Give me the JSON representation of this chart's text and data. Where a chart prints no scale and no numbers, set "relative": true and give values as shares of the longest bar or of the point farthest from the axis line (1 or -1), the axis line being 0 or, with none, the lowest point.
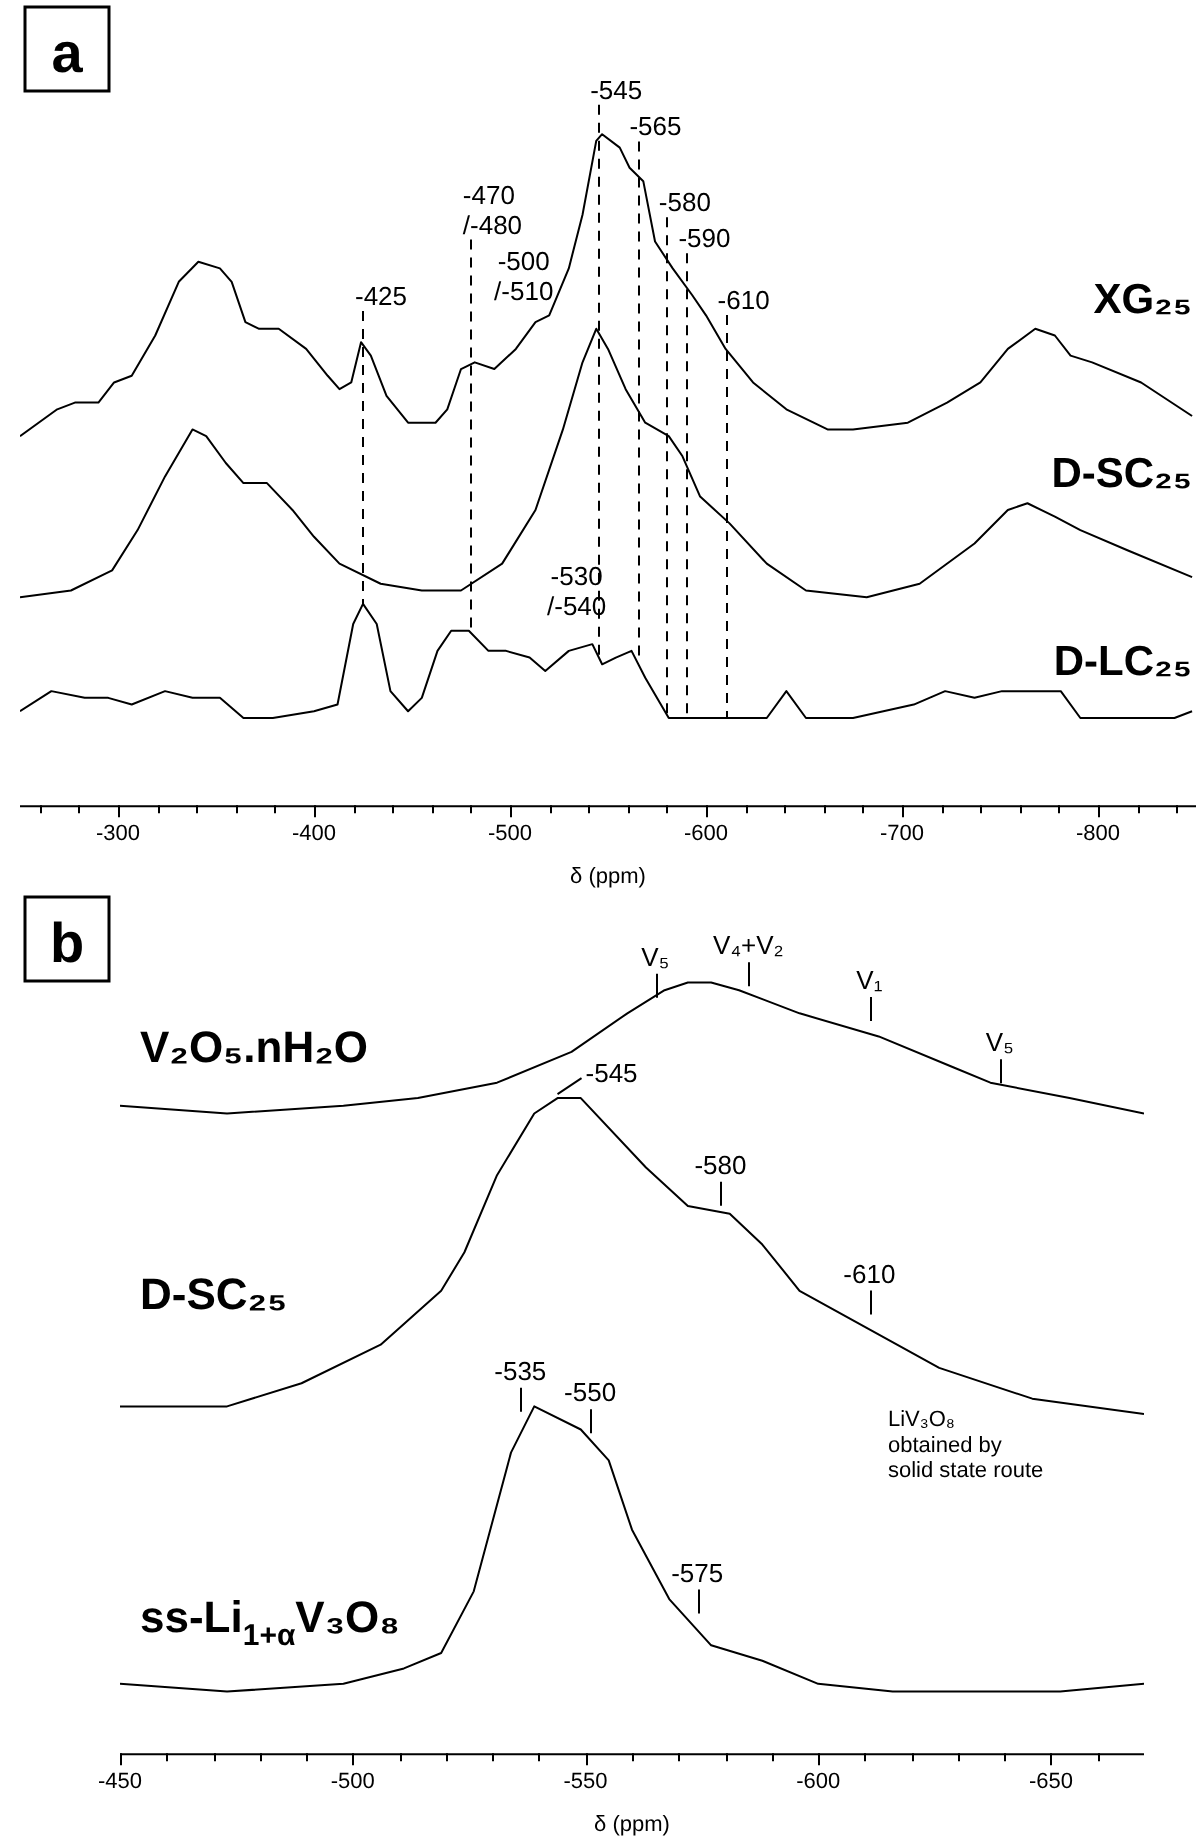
{
  "chart_data": [
    {
      "type": "line",
      "title": "a",
      "xlabel": "δ (ppm)",
      "relative": true,
      "marker": "none",
      "xlim": [
        -250,
        -850
      ],
      "xticks": [
        {
          "value": -260,
          "label": null
        },
        {
          "value": -280,
          "label": null
        },
        -300,
        {
          "value": -320,
          "label": null
        },
        {
          "value": -340,
          "label": null
        },
        {
          "value": -360,
          "label": null
        },
        {
          "value": -380,
          "label": null
        },
        -400,
        {
          "value": -420,
          "label": null
        },
        {
          "value": -440,
          "label": null
        },
        {
          "value": -460,
          "label": null
        },
        {
          "value": -480,
          "label": null
        },
        -500,
        {
          "value": -520,
          "label": null
        },
        {
          "value": -540,
          "label": null
        },
        {
          "value": -560,
          "label": null
        },
        {
          "value": -580,
          "label": null
        },
        -600,
        {
          "value": -620,
          "label": null
        },
        {
          "value": -640,
          "label": null
        },
        {
          "value": -660,
          "label": null
        },
        {
          "value": -680,
          "label": null
        },
        -700,
        {
          "value": -720,
          "label": null
        },
        {
          "value": -740,
          "label": null
        },
        {
          "value": -760,
          "label": null
        },
        {
          "value": -780,
          "label": null
        },
        -800,
        {
          "value": -820,
          "label": null
        },
        {
          "value": -840,
          "label": null
        }
      ],
      "series": [
        {
          "name": "XG₂₅",
          "color": "#000000",
          "x": [
            -250,
            -269,
            -278,
            -290,
            -298,
            -307,
            -319,
            -331,
            -341,
            -352,
            -358,
            -365,
            -372,
            -382,
            -396,
            -407,
            -413,
            -419,
            -424,
            -429,
            -437,
            -448,
            -462,
            -468,
            -475,
            -482,
            -492,
            -503,
            -513,
            -520,
            -530,
            -537,
            -544,
            -547,
            -556,
            -561,
            -568,
            -574,
            -583,
            -593,
            -600,
            -610,
            -624,
            -641,
            -662,
            -675,
            -703,
            -723,
            -740,
            -754,
            -768,
            -778,
            -786,
            -797,
            -822,
            -848
          ],
          "values": [
            0.55,
            0.59,
            0.6,
            0.6,
            0.63,
            0.64,
            0.7,
            0.78,
            0.81,
            0.8,
            0.78,
            0.72,
            0.71,
            0.71,
            0.68,
            0.64,
            0.62,
            0.63,
            0.69,
            0.67,
            0.61,
            0.57,
            0.57,
            0.59,
            0.65,
            0.66,
            0.65,
            0.68,
            0.72,
            0.73,
            0.8,
            0.88,
            0.99,
            1,
            0.98,
            0.95,
            0.93,
            0.84,
            0.8,
            0.76,
            0.73,
            0.68,
            0.63,
            0.59,
            0.56,
            0.56,
            0.57,
            0.6,
            0.63,
            0.68,
            0.71,
            0.7,
            0.67,
            0.66,
            0.63,
            0.58
          ]
        },
        {
          "name": "D-SC₂₅",
          "color": "#000000",
          "x": [
            -250,
            -276,
            -297,
            -310,
            -324,
            -338,
            -345,
            -355,
            -364,
            -376,
            -389,
            -400,
            -413,
            -434,
            -455,
            -475,
            -496,
            -513,
            -527,
            -537,
            -544,
            -550,
            -559,
            -569,
            -581,
            -588,
            -597,
            -612,
            -631,
            -651,
            -682,
            -709,
            -737,
            -754,
            -764,
            -778,
            -791,
            -815,
            -848
          ],
          "values": [
            0.31,
            0.32,
            0.35,
            0.41,
            0.49,
            0.56,
            0.55,
            0.51,
            0.48,
            0.48,
            0.44,
            0.4,
            0.36,
            0.33,
            0.32,
            0.32,
            0.36,
            0.44,
            0.56,
            0.66,
            0.71,
            0.68,
            0.62,
            0.57,
            0.55,
            0.52,
            0.46,
            0.42,
            0.36,
            0.32,
            0.31,
            0.33,
            0.39,
            0.44,
            0.45,
            0.43,
            0.41,
            0.38,
            0.34
          ]
        },
        {
          "name": "D-LC₂₅",
          "color": "#000000",
          "x": [
            -250,
            -266,
            -283,
            -295,
            -307,
            -324,
            -338,
            -352,
            -364,
            -379,
            -400,
            -412,
            -420,
            -425,
            -432,
            -439,
            -448,
            -455,
            -463,
            -470,
            -479,
            -489,
            -498,
            -510,
            -518,
            -530,
            -542,
            -547,
            -554,
            -562,
            -569,
            -581,
            -600,
            -631,
            -641,
            -651,
            -675,
            -706,
            -722,
            -737,
            -751,
            -771,
            -781,
            -791,
            -815,
            -839,
            -848
          ],
          "values": [
            0.14,
            0.17,
            0.16,
            0.16,
            0.15,
            0.17,
            0.16,
            0.16,
            0.13,
            0.13,
            0.14,
            0.15,
            0.27,
            0.3,
            0.27,
            0.17,
            0.14,
            0.16,
            0.23,
            0.26,
            0.26,
            0.23,
            0.23,
            0.22,
            0.2,
            0.23,
            0.24,
            0.21,
            0.22,
            0.23,
            0.19,
            0.13,
            0.13,
            0.13,
            0.17,
            0.13,
            0.13,
            0.15,
            0.17,
            0.16,
            0.17,
            0.17,
            0.17,
            0.13,
            0.13,
            0.13,
            0.14
          ]
        }
      ],
      "ref_lines": [
        {
          "axis": "x",
          "value": -425,
          "label": "-425",
          "line_style": "dashed"
        },
        {
          "axis": "x",
          "value": -480,
          "label": "-470\n/-480",
          "line_style": "dashed"
        },
        {
          "axis": "x",
          "value": -545,
          "label": "-545",
          "line_style": "dashed"
        },
        {
          "axis": "x",
          "value": -565,
          "label": "-565",
          "line_style": "dashed"
        },
        {
          "axis": "x",
          "value": -580,
          "label": "-580",
          "line_style": "dashed"
        },
        {
          "axis": "x",
          "value": -590,
          "label": "-590",
          "line_style": "dashed"
        },
        {
          "axis": "x",
          "value": -610,
          "label": "-610",
          "line_style": "dashed"
        }
      ],
      "annotations": [
        {
          "text": "-500\n/-510",
          "x": -507,
          "y": 0.7
        },
        {
          "text": "-530\n/-540",
          "x": -534,
          "y": 0.23
        }
      ]
    },
    {
      "type": "line",
      "title": "b",
      "xlabel": "δ (ppm)",
      "relative": true,
      "marker": "none",
      "xlim": [
        -450,
        -670
      ],
      "xticks": [
        -450,
        {
          "value": -460,
          "label": null
        },
        {
          "value": -470,
          "label": null
        },
        {
          "value": -480,
          "label": null
        },
        {
          "value": -490,
          "label": null
        },
        -500,
        {
          "value": -510,
          "label": null
        },
        {
          "value": -520,
          "label": null
        },
        {
          "value": -530,
          "label": null
        },
        {
          "value": -540,
          "label": null
        },
        -550,
        {
          "value": -560,
          "label": null
        },
        {
          "value": -570,
          "label": null
        },
        {
          "value": -580,
          "label": null
        },
        {
          "value": -590,
          "label": null
        },
        -600,
        {
          "value": -610,
          "label": null
        },
        {
          "value": -620,
          "label": null
        },
        {
          "value": -630,
          "label": null
        },
        {
          "value": -640,
          "label": null
        },
        -650,
        {
          "value": -660,
          "label": null
        }
      ],
      "series": [
        {
          "name": "V₂O₅.nH₂O",
          "color": "#000000",
          "x": [
            -450,
            -473,
            -498,
            -514,
            -531,
            -547,
            -559,
            -567,
            -572,
            -577,
            -583,
            -596,
            -613,
            -629,
            -637,
            -654,
            -670
          ],
          "values": [
            0.84,
            0.83,
            0.84,
            0.85,
            0.87,
            0.91,
            0.96,
            0.99,
            1,
            1,
            0.99,
            0.96,
            0.93,
            0.89,
            0.87,
            0.85,
            0.83
          ]
        },
        {
          "name": "D-SC₂₅",
          "color": "#000000",
          "x": [
            -450,
            -473,
            -489,
            -506,
            -519,
            -524,
            -531,
            -539,
            -544,
            -549,
            -563,
            -572,
            -581,
            -588,
            -596,
            -611,
            -626,
            -646,
            -670
          ],
          "values": [
            0.45,
            0.45,
            0.48,
            0.53,
            0.6,
            0.65,
            0.75,
            0.83,
            0.85,
            0.85,
            0.76,
            0.71,
            0.7,
            0.66,
            0.6,
            0.55,
            0.5,
            0.46,
            0.44
          ]
        },
        {
          "name": "ss-Li$_{1+α}$V₃O₈",
          "color": "#000000",
          "x": [
            -450,
            -473,
            -498,
            -511,
            -519,
            -526,
            -534,
            -539,
            -549,
            -555,
            -560,
            -568,
            -577,
            -588,
            -600,
            -616,
            -652,
            -670
          ],
          "values": [
            0.09,
            0.08,
            0.09,
            0.11,
            0.13,
            0.21,
            0.39,
            0.45,
            0.42,
            0.38,
            0.29,
            0.2,
            0.14,
            0.12,
            0.09,
            0.08,
            0.08,
            0.09
          ]
        }
      ],
      "annotations": [
        {
          "text": "V₅",
          "x": -565,
          "y": 0.975
        },
        {
          "text": "V₄+V₂",
          "x": -585,
          "y": 0.99
        },
        {
          "text": "V₁",
          "x": -611,
          "y": 0.945
        },
        {
          "text": "V₅",
          "x": -639,
          "y": 0.864
        },
        {
          "text": "-545",
          "x": -544,
          "y": 0.85
        },
        {
          "text": "-580",
          "x": -579,
          "y": 0.705
        },
        {
          "text": "-610",
          "x": -611,
          "y": 0.564
        },
        {
          "text": "-535",
          "x": -536,
          "y": 0.438
        },
        {
          "text": "-550",
          "x": -551,
          "y": 0.41
        },
        {
          "text": "-575",
          "x": -574,
          "y": 0.176
        },
        "LiV₃O₈\nobtained by\nsolid state route"
      ]
    }
  ]
}
